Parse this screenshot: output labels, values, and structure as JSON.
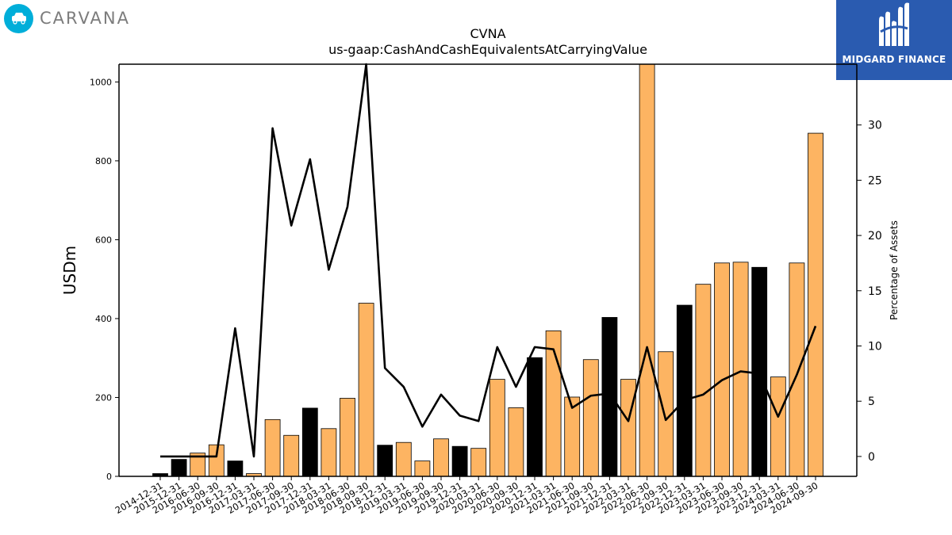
{
  "brand": {
    "name": "CARVANA",
    "icon": "car-icon"
  },
  "watermark": {
    "text": "MIDGARD FINANCE",
    "icon": "midgard-logo-icon",
    "bg": "#2a5bb0"
  },
  "chart_data": {
    "type": "bar",
    "title": "CVNA",
    "subtitle": "us-gaap:CashAndCashEquivalentsAtCarryingValue",
    "ylabel": "USDm",
    "y2label": "Percentage of Assets",
    "ylim": [
      0,
      1045
    ],
    "y2lim": [
      -1.8,
      35.5
    ],
    "yticks": [
      0,
      200,
      400,
      600,
      800,
      1000
    ],
    "y2ticks": [
      0,
      5,
      10,
      15,
      20,
      25,
      30
    ],
    "grid": false,
    "colors": {
      "annual": "#000000",
      "quarterly": "#fdb462",
      "line": "#000000"
    },
    "categories": [
      "2014-12-31",
      "2015-12-31",
      "2016-06-30",
      "2016-09-30",
      "2016-12-31",
      "2017-03-31",
      "2017-06-30",
      "2017-09-30",
      "2017-12-31",
      "2018-03-31",
      "2018-06-30",
      "2018-09-30",
      "2018-12-31",
      "2019-03-31",
      "2019-06-30",
      "2019-09-30",
      "2019-12-31",
      "2020-03-31",
      "2020-06-30",
      "2020-09-30",
      "2020-12-31",
      "2021-03-31",
      "2021-06-30",
      "2021-09-30",
      "2021-12-31",
      "2022-03-31",
      "2022-06-30",
      "2022-09-30",
      "2022-12-31",
      "2023-03-31",
      "2023-06-30",
      "2023-09-30",
      "2023-12-31",
      "2024-03-31",
      "2024-06-30",
      "2024-09-30"
    ],
    "series": [
      {
        "kind": "bar",
        "values": [
          7,
          43,
          59,
          80,
          39,
          7,
          144,
          104,
          173,
          121,
          198,
          439,
          79,
          86,
          39,
          95,
          76,
          71,
          246,
          174,
          301,
          369,
          201,
          296,
          403,
          246,
          1045,
          316,
          434,
          487,
          541,
          543,
          530,
          252,
          541,
          870
        ],
        "fiscal_year_end": [
          true,
          true,
          false,
          false,
          true,
          false,
          false,
          false,
          true,
          false,
          false,
          false,
          true,
          false,
          false,
          false,
          true,
          false,
          false,
          false,
          true,
          false,
          false,
          false,
          true,
          false,
          false,
          false,
          true,
          false,
          false,
          false,
          true,
          false,
          false,
          false
        ]
      },
      {
        "kind": "line",
        "axis": "right",
        "values": [
          0,
          0,
          0,
          0,
          11.6,
          0,
          29.7,
          20.9,
          26.9,
          16.9,
          22.6,
          35.5,
          8.0,
          6.3,
          2.7,
          5.6,
          3.7,
          3.2,
          9.9,
          6.3,
          9.9,
          9.7,
          4.4,
          5.5,
          5.7,
          3.2,
          9.9,
          3.3,
          5.1,
          5.6,
          6.9,
          7.7,
          7.5,
          3.6,
          7.4,
          11.8
        ]
      }
    ]
  }
}
